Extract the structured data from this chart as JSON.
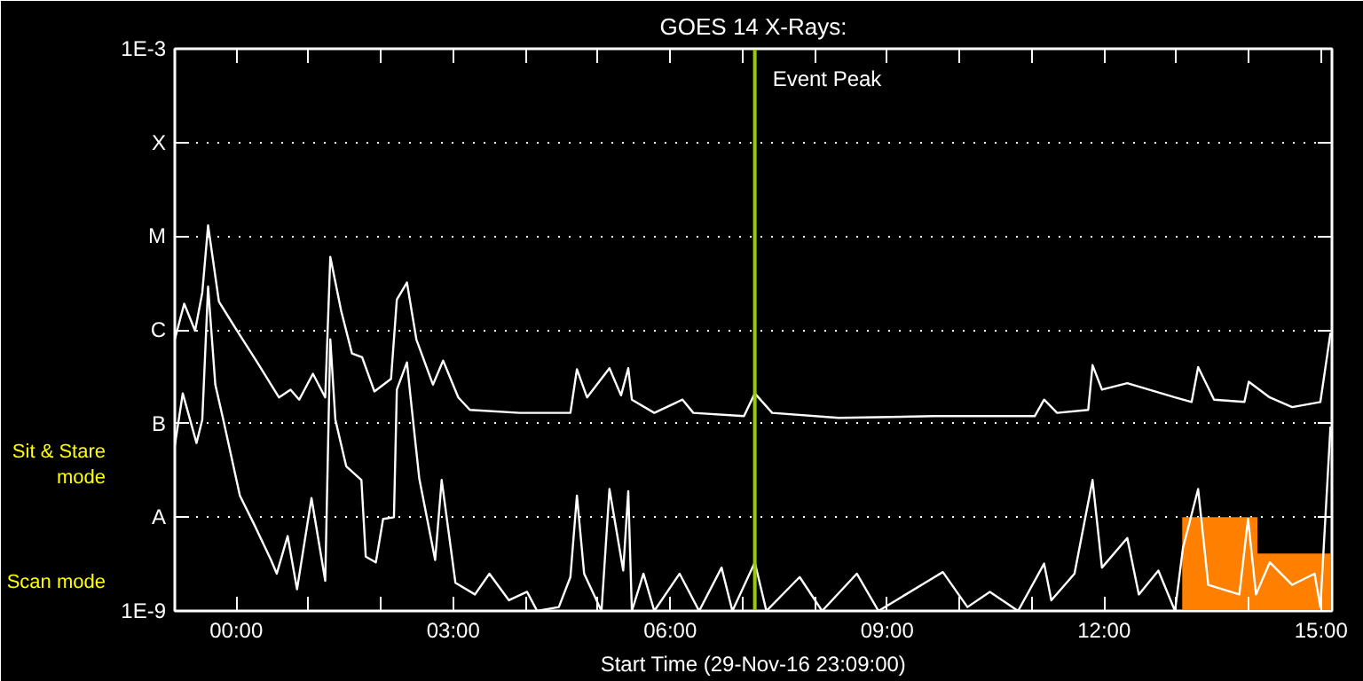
{
  "chart_data": {
    "type": "line",
    "title": "GOES 14 X-Rays:",
    "xlabel": "Start Time (29-Nov-16 23:09:00)",
    "annotations": [
      "Sit & Stare\nmode",
      "Scan mode"
    ],
    "log": "y",
    "grid": "y",
    "xlim": [
      -0.85,
      15.15
    ],
    "xticks": [
      {
        "value": 0,
        "label": "00:00"
      },
      {
        "value": 1,
        "label": null
      },
      {
        "value": 2,
        "label": null
      },
      {
        "value": 3,
        "label": "03:00"
      },
      {
        "value": 4,
        "label": null
      },
      {
        "value": 5,
        "label": null
      },
      {
        "value": 6,
        "label": "06:00"
      },
      {
        "value": 7,
        "label": null
      },
      {
        "value": 8,
        "label": null
      },
      {
        "value": 9,
        "label": "09:00"
      },
      {
        "value": 10,
        "label": null
      },
      {
        "value": 11,
        "label": null
      },
      {
        "value": 12,
        "label": "12:00"
      },
      {
        "value": 13,
        "label": null
      },
      {
        "value": 14,
        "label": null
      },
      {
        "value": 15,
        "label": "15:00"
      }
    ],
    "ylim": [
      1e-09,
      0.001
    ],
    "yticks": [
      {
        "value": 1e-09,
        "label": "1E-9"
      },
      {
        "value": 1e-08,
        "label": "A"
      },
      {
        "value": 1e-07,
        "label": "B"
      },
      {
        "value": 1e-06,
        "label": "C"
      },
      {
        "value": 1e-05,
        "label": "M"
      },
      {
        "value": 0.0001,
        "label": "X"
      },
      {
        "value": 0.001,
        "label": "1E-3"
      }
    ],
    "ref_lines": [
      {
        "axis": "x",
        "value": 7.17,
        "label": "Event Peak",
        "color": "#99cc00"
      }
    ],
    "series": [
      {
        "type": "area",
        "color": "#ff8000",
        "x": [
          13.08,
          14.12,
          14.12,
          15.15
        ],
        "values": [
          1e-08,
          1e-08,
          4.1e-09,
          4.1e-09
        ]
      },
      {
        "color": "#ffffff",
        "x": [
          -0.85,
          -0.72,
          -0.57,
          -0.47,
          -0.39,
          -0.24,
          0.01,
          0.29,
          0.59,
          0.75,
          0.87,
          1.06,
          1.23,
          1.3,
          1.45,
          1.6,
          1.74,
          1.91,
          2.14,
          2.22,
          2.36,
          2.49,
          2.72,
          2.86,
          3.07,
          3.23,
          3.92,
          4.62,
          4.71,
          4.85,
          5.16,
          5.32,
          5.42,
          5.47,
          5.78,
          6.17,
          6.32,
          7.02,
          7.17,
          7.41,
          8.33,
          9.65,
          11.04,
          11.17,
          11.35,
          11.78,
          11.84,
          11.97,
          12.32,
          12.98,
          13.21,
          13.3,
          13.52,
          13.94,
          14.0,
          14.29,
          14.6,
          14.99,
          15.13
        ],
        "values": [
          7.9e-07,
          1.9e-06,
          9.8e-07,
          2.5e-06,
          1.3e-05,
          2e-06,
          9.8e-07,
          4.5e-07,
          1.9e-07,
          2.3e-07,
          1.8e-07,
          3.4e-07,
          1.9e-07,
          6e-06,
          1.6e-06,
          5.6e-07,
          5.1e-07,
          2.2e-07,
          3e-07,
          2.1e-06,
          3.2e-06,
          7.9e-07,
          2.6e-07,
          4.7e-07,
          1.9e-07,
          1.4e-07,
          1.3e-07,
          1.3e-07,
          3.8e-07,
          1.9e-07,
          3.9e-07,
          2e-07,
          3.9e-07,
          1.8e-07,
          1.3e-07,
          1.8e-07,
          1.3e-07,
          1.2e-07,
          2.1e-07,
          1.3e-07,
          1.15e-07,
          1.2e-07,
          1.2e-07,
          1.8e-07,
          1.3e-07,
          1.4e-07,
          4.2e-07,
          2.3e-07,
          2.7e-07,
          1.9e-07,
          1.7e-07,
          4e-07,
          1.8e-07,
          1.7e-07,
          2.8e-07,
          1.9e-07,
          1.5e-07,
          1.7e-07,
          9.3e-07
        ]
      },
      {
        "color": "#ffffff",
        "x": [
          -0.85,
          -0.74,
          -0.55,
          -0.47,
          -0.39,
          -0.29,
          -0.18,
          0.05,
          0.25,
          0.48,
          0.56,
          0.71,
          0.84,
          1.04,
          1.23,
          1.3,
          1.37,
          1.52,
          1.73,
          1.79,
          1.93,
          2.03,
          2.18,
          2.22,
          2.36,
          2.41,
          2.53,
          2.75,
          2.84,
          3.03,
          3.3,
          3.5,
          3.77,
          4.02,
          4.16,
          4.46,
          4.62,
          4.71,
          4.81,
          5.05,
          5.16,
          5.35,
          5.42,
          5.47,
          5.63,
          5.78,
          6.13,
          6.4,
          6.71,
          6.86,
          7.17,
          7.33,
          7.79,
          8.1,
          8.58,
          8.88,
          9.57,
          9.77,
          10.11,
          10.42,
          10.81,
          11.17,
          11.27,
          11.59,
          11.84,
          11.97,
          12.32,
          12.48,
          12.75,
          12.98,
          13.09,
          13.3,
          13.44,
          13.87,
          13.99,
          14.1,
          14.29,
          14.6,
          14.91,
          14.99,
          15.13
        ],
        "values": [
          5.8e-08,
          2.1e-07,
          6.2e-08,
          1.1e-07,
          2.9e-06,
          2.6e-07,
          1.1e-07,
          1.7e-08,
          8.3e-09,
          3.5e-09,
          2.5e-09,
          6.3e-09,
          1.7e-09,
          1.6e-08,
          2.1e-09,
          7.9e-07,
          1.1e-07,
          3.5e-08,
          2.5e-08,
          3.8e-09,
          3.3e-09,
          9.6e-09,
          1e-08,
          2.3e-07,
          4.5e-07,
          1.9e-07,
          2.6e-08,
          3.5e-09,
          2.5e-08,
          2e-09,
          1.5e-09,
          2.5e-09,
          1.3e-09,
          1.6e-09,
          1e-09,
          1.1e-09,
          2.3e-09,
          1.7e-08,
          2.5e-09,
          1e-09,
          2e-08,
          2.7e-09,
          1.9e-08,
          1e-09,
          2.5e-09,
          1e-09,
          2.5e-09,
          1e-09,
          2.9e-09,
          1e-09,
          3.3e-09,
          1e-09,
          2.3e-09,
          1e-09,
          2.5e-09,
          1e-09,
          2.1e-09,
          2.6e-09,
          1.1e-09,
          1.6e-09,
          1e-09,
          3.2e-09,
          1.3e-09,
          2.5e-09,
          2.5e-08,
          2.9e-09,
          6e-09,
          1.5e-09,
          2.7e-09,
          1e-09,
          4.7e-09,
          2e-08,
          1.9e-09,
          1.5e-09,
          9.6e-09,
          1.5e-09,
          3.3e-09,
          1.9e-09,
          2.5e-09,
          1.1e-09,
          9.3e-08
        ]
      }
    ]
  }
}
